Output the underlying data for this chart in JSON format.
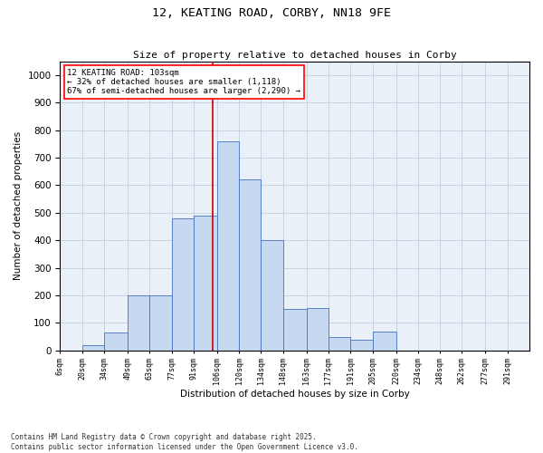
{
  "title": "12, KEATING ROAD, CORBY, NN18 9FE",
  "subtitle": "Size of property relative to detached houses in Corby",
  "xlabel": "Distribution of detached houses by size in Corby",
  "ylabel": "Number of detached properties",
  "footer": "Contains HM Land Registry data © Crown copyright and database right 2025.\nContains public sector information licensed under the Open Government Licence v3.0.",
  "categories": [
    "6sqm",
    "20sqm",
    "34sqm",
    "49sqm",
    "63sqm",
    "77sqm",
    "91sqm",
    "106sqm",
    "120sqm",
    "134sqm",
    "148sqm",
    "163sqm",
    "177sqm",
    "191sqm",
    "205sqm",
    "220sqm",
    "234sqm",
    "248sqm",
    "262sqm",
    "277sqm",
    "291sqm"
  ],
  "bar_values": [
    0,
    20,
    65,
    200,
    200,
    480,
    490,
    760,
    620,
    400,
    150,
    155,
    50,
    40,
    70,
    0,
    0,
    0,
    0,
    0,
    0
  ],
  "bar_color": "#c6d9f0",
  "bar_edge_color": "#4472c4",
  "grid_color": "#b8c8d8",
  "bg_color": "#eaf0f8",
  "annotation_text": "12 KEATING ROAD: 103sqm\n← 32% of detached houses are smaller (1,118)\n67% of semi-detached houses are larger (2,290) →",
  "vline_color": "#cc0000",
  "vline_x": 103,
  "ylim_max": 1050,
  "bin_edges": [
    6,
    20,
    34,
    49,
    63,
    77,
    91,
    106,
    120,
    134,
    148,
    163,
    177,
    191,
    205,
    220,
    234,
    248,
    262,
    277,
    291,
    305
  ],
  "yticks": [
    0,
    100,
    200,
    300,
    400,
    500,
    600,
    700,
    800,
    900,
    1000
  ]
}
